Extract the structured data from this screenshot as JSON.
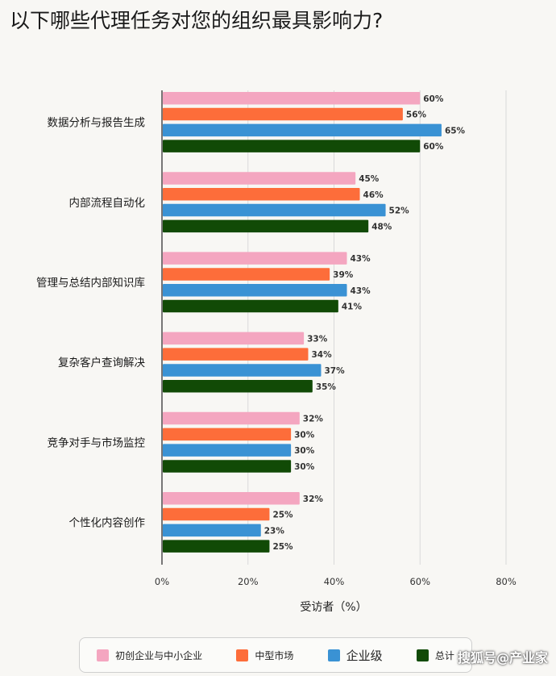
{
  "title": "以下哪些代理任务对您的组织最具影响力?",
  "watermark": "搜狐号@产业家",
  "colors": {
    "startup_smb": "#f4a6c0",
    "mid_market": "#fd6d3a",
    "enterprise": "#3a92d4",
    "total": "#114a06"
  },
  "chart_data": {
    "type": "bar",
    "orientation": "horizontal",
    "categories": [
      "数据分析与报告生成",
      "内部流程自动化",
      "管理与总结内部知识库",
      "复杂客户查询解决",
      "竞争对手与市场监控",
      "个性化内容创作"
    ],
    "series": [
      {
        "name": "初创企业与中小企业",
        "color": "#f4a6c0",
        "values": [
          60,
          45,
          43,
          33,
          32,
          32
        ]
      },
      {
        "name": "中型市场",
        "color": "#fd6d3a",
        "values": [
          56,
          46,
          39,
          34,
          30,
          25
        ]
      },
      {
        "name": "企业级",
        "color": "#3a92d4",
        "values": [
          65,
          52,
          43,
          37,
          30,
          23
        ]
      },
      {
        "name": "总计",
        "color": "#114a06",
        "values": [
          60,
          48,
          41,
          35,
          30,
          25
        ]
      }
    ],
    "xlim": [
      0,
      80
    ],
    "xticks": [
      "0%",
      "20%",
      "40%",
      "60%",
      "80%"
    ],
    "xlabel": "受访者（%）",
    "value_suffix": "%",
    "grid": "vertical",
    "legend": "bottom"
  }
}
